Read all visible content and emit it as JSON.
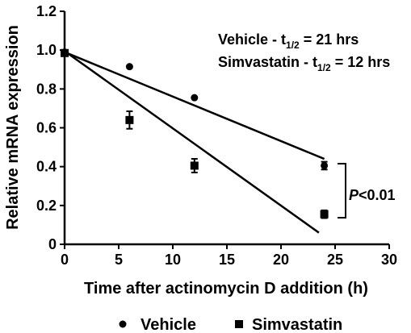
{
  "chart_data": {
    "type": "scatter",
    "title": "",
    "xlabel": "Time after actinomycin D addition (h)",
    "ylabel": "Relative mRNA expression",
    "xlim": [
      0,
      30
    ],
    "ylim": [
      0,
      1.2
    ],
    "xticks": [
      0,
      5,
      10,
      15,
      20,
      25,
      30
    ],
    "yticks": [
      0,
      0.2,
      0.4,
      0.6,
      0.8,
      1.0,
      1.2
    ],
    "xtick_labels": [
      "0",
      "5",
      "10",
      "15",
      "20",
      "25",
      "30"
    ],
    "ytick_labels": [
      "0",
      "0.2",
      "0.4",
      "0.6",
      "0.8",
      "1.0",
      "1.2"
    ],
    "grid": false,
    "legend_position": "bottom",
    "series": [
      {
        "name": "Vehicle",
        "marker": "circle",
        "x": [
          0,
          6,
          12,
          24
        ],
        "y": [
          0.99,
          0.915,
          0.755,
          0.405
        ],
        "err": [
          0,
          0,
          0,
          0.02
        ],
        "fit": {
          "x": [
            0,
            24
          ],
          "y": [
            0.99,
            0.44
          ]
        }
      },
      {
        "name": "Simvastatin",
        "marker": "square",
        "x": [
          0,
          6,
          12,
          24
        ],
        "y": [
          0.985,
          0.64,
          0.405,
          0.155
        ],
        "err": [
          0,
          0.045,
          0.035,
          0.02
        ],
        "fit": {
          "x": [
            0,
            23.5
          ],
          "y": [
            0.995,
            0.06
          ]
        }
      }
    ],
    "annotations": {
      "vehicle_prefix": "Vehicle - t",
      "vehicle_sub": "1/2",
      "vehicle_suffix": " = 21 hrs",
      "simva_prefix": "Simvastatin - t",
      "simva_sub": "1/2",
      "simva_suffix": " = 12 hrs",
      "p_letter": "P",
      "p_rest": "<0.01"
    }
  }
}
